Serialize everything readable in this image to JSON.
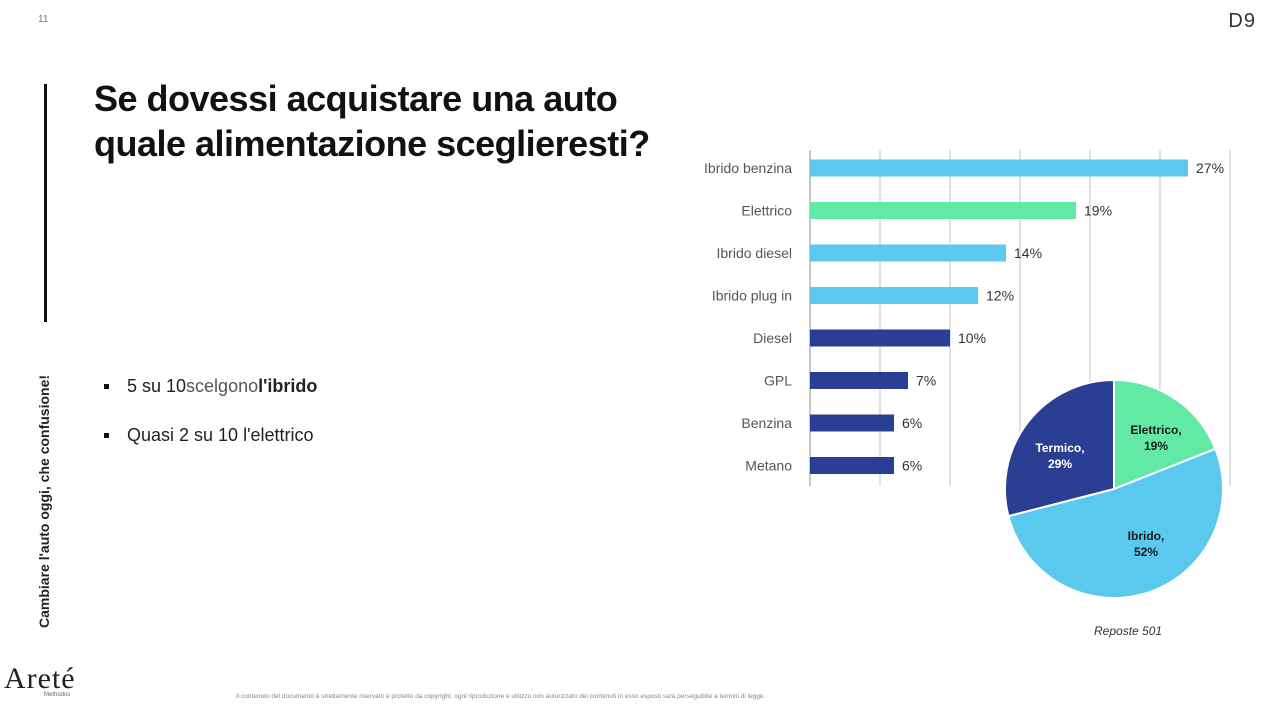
{
  "header": {
    "page_number": "11",
    "brand": "D9"
  },
  "sidebar": {
    "vertical_text": "Cambiare l'auto oggi, che confusione!"
  },
  "title": "Se dovessi acquistare una auto quale alimentazione sceglieresti?",
  "bullets": [
    {
      "prefix": "5 su 10 ",
      "highlight": "scelgono",
      "suffix": " l'ibrido"
    },
    {
      "text": "Quasi 2 su 10 l'elettrico"
    }
  ],
  "chart_data": [
    {
      "type": "bar",
      "orientation": "horizontal",
      "categories": [
        "Ibrido benzina",
        "Elettrico",
        "Ibrido diesel",
        "Ibrido plug in",
        "Diesel",
        "GPL",
        "Benzina",
        "Metano"
      ],
      "values": [
        27,
        19,
        14,
        12,
        10,
        7,
        6,
        6
      ],
      "value_labels": [
        "27%",
        "19%",
        "14%",
        "12%",
        "10%",
        "7%",
        "6%",
        "6%"
      ],
      "colors": [
        "#5bc8ee",
        "#62eaa5",
        "#5bc8ee",
        "#5bc8ee",
        "#2a3f94",
        "#2a3f94",
        "#2a3f94",
        "#2a3f94"
      ],
      "xlim": [
        0,
        30
      ],
      "grid": true
    },
    {
      "type": "pie",
      "slices": [
        {
          "label": "Elettrico",
          "value": 19,
          "value_label": "19%",
          "color": "#62eaa5"
        },
        {
          "label": "Ibrido",
          "value": 52,
          "value_label": "52%",
          "color": "#5bc8ee"
        },
        {
          "label": "Termico",
          "value": 29,
          "value_label": "29%",
          "color": "#2a3f94"
        }
      ]
    }
  ],
  "responses_note": "Reposte 501",
  "logo": {
    "name": "Areté",
    "sub": "Methodos"
  },
  "footer": "Il contenuto del documento è strettamente riservato e protetto da copyright, ogni riproduzione e utilizzo non autorizzato dei contenuti in esso esposti sarà perseguibile a termini di legge."
}
